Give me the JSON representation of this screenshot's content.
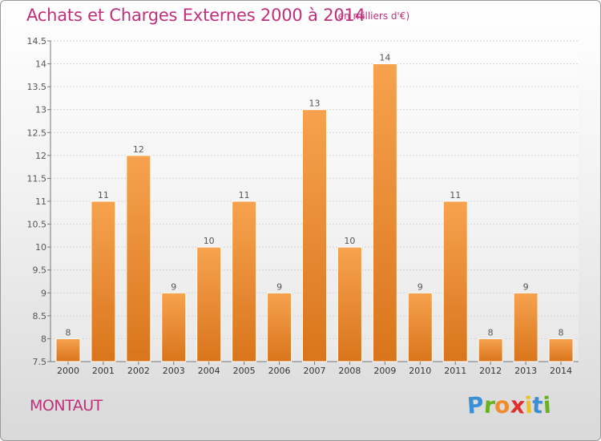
{
  "chart_data": {
    "type": "bar",
    "title": "Achats et Charges Externes 2000 à 2014",
    "unit_label": "(en milliers d'€)",
    "categories": [
      "2000",
      "2001",
      "2002",
      "2003",
      "2004",
      "2005",
      "2006",
      "2007",
      "2008",
      "2009",
      "2010",
      "2011",
      "2012",
      "2013",
      "2014"
    ],
    "values": [
      8,
      11,
      12,
      9,
      10,
      11,
      9,
      13,
      10,
      14,
      9,
      11,
      8,
      9,
      8
    ],
    "data_labels": [
      "8",
      "11",
      "12",
      "9",
      "10",
      "11",
      "9",
      "13",
      "10",
      "14",
      "9",
      "11",
      "8",
      "9",
      "8"
    ],
    "ylim": [
      7.5,
      14.5
    ],
    "yticks": [
      7.5,
      8,
      8.5,
      9,
      9.5,
      10,
      10.5,
      11,
      11.5,
      12,
      12.5,
      13,
      13.5,
      14,
      14.5
    ],
    "ytick_labels": [
      "7.5",
      "8",
      "8.5",
      "9",
      "9.5",
      "10",
      "10.5",
      "11",
      "11.5",
      "12",
      "12.5",
      "13",
      "13.5",
      "14",
      "14.5"
    ],
    "grid": "horizontal",
    "bar_color": "#f08c2c",
    "xlabel": "",
    "ylabel": ""
  },
  "footer": {
    "commune": "MONTAUT",
    "logo": [
      "P",
      "r",
      "o",
      "x",
      "i",
      "t",
      "i"
    ],
    "logo_colors": [
      "#3a8fd6",
      "#6ab023",
      "#f08c2c",
      "#e0302c",
      "#f0c020",
      "#3a8fd6",
      "#6ab023"
    ]
  },
  "colors": {
    "title": "#c0307a",
    "axis": "#555555"
  }
}
